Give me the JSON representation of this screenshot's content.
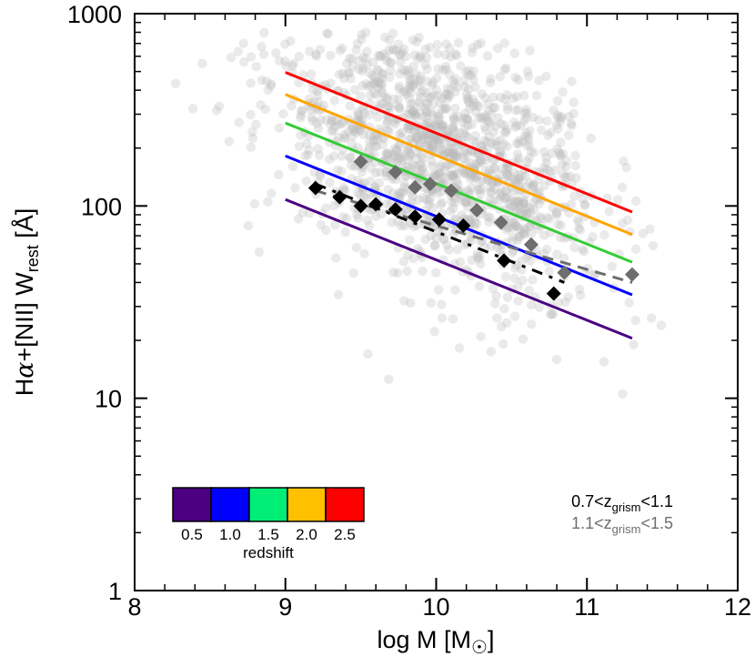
{
  "chart_data": {
    "type": "scatter",
    "title": "",
    "xlabel": "log M [M☉]",
    "xlabel_parts": {
      "pre": "log M [M",
      "sub": "☉",
      "post": "]"
    },
    "ylabel": "Hα+[NII]  W_rest [Å]",
    "ylabel_parts": {
      "pre": "H",
      "alpha": "α",
      "mid": "+[NII]  W",
      "sub": "rest",
      "post": " [Å]"
    },
    "xlim": [
      8,
      12
    ],
    "ylim": [
      1,
      1000
    ],
    "yscale": "log",
    "x_ticks": [
      8,
      9,
      10,
      11,
      12
    ],
    "x_tick_labels": [
      "8",
      "9",
      "10",
      "11",
      "12"
    ],
    "y_ticks": [
      1,
      10,
      100,
      1000
    ],
    "y_tick_labels": [
      "1",
      "10",
      "100",
      "1000"
    ],
    "model_lines": [
      {
        "redshift": 0.5,
        "color": "#4b0082",
        "x": [
          9.0,
          11.3
        ],
        "y": [
          108,
          20.5
        ]
      },
      {
        "redshift": 1.0,
        "color": "#0000ff",
        "x": [
          9.0,
          11.3
        ],
        "y": [
          182,
          34.5
        ]
      },
      {
        "redshift": 1.5,
        "color": "#33cc33",
        "x": [
          9.0,
          11.3
        ],
        "y": [
          270,
          51
        ]
      },
      {
        "redshift": 2.0,
        "color": "#ffa500",
        "x": [
          9.0,
          11.3
        ],
        "y": [
          380,
          71
        ]
      },
      {
        "redshift": 2.5,
        "color": "#ff0000",
        "x": [
          9.0,
          11.3
        ],
        "y": [
          495,
          93
        ]
      }
    ],
    "series": [
      {
        "name": "0.7<z_grism<1.1",
        "legend": {
          "pre": "0.7<z",
          "sub": "grism",
          "post": "<1.1"
        },
        "color": "#000000",
        "marker": "diamond",
        "x": [
          9.2,
          9.36,
          9.5,
          9.6,
          9.73,
          9.86,
          10.02,
          10.18,
          10.45,
          10.78
        ],
        "y": [
          124,
          111,
          100,
          102,
          96,
          88,
          85,
          79,
          52,
          35
        ],
        "fit": {
          "x": [
            9.2,
            10.85
          ],
          "y": [
            130,
            40
          ]
        }
      },
      {
        "name": "1.1<z_grism<1.5",
        "legend": {
          "pre": "1.1<z",
          "sub": "grism",
          "post": "<1.5"
        },
        "color": "#6e6e6e",
        "marker": "diamond",
        "x": [
          9.5,
          9.73,
          9.86,
          9.96,
          10.1,
          10.27,
          10.43,
          10.63,
          10.85,
          11.3
        ],
        "y": [
          170,
          150,
          125,
          130,
          120,
          95,
          82,
          63,
          45,
          44
        ],
        "fit": {
          "x": [
            9.2,
            11.3
          ],
          "y": [
            120,
            40
          ]
        }
      }
    ],
    "colorbar": {
      "title": "redshift",
      "colors": [
        "#4b0082",
        "#0000ff",
        "#00ee76",
        "#ffc000",
        "#ff0000"
      ],
      "tick_labels": [
        "0.5",
        "1.0",
        "1.5",
        "2.0",
        "2.5"
      ]
    },
    "background_cloud": {
      "color": "#b8b8b8",
      "x_range": [
        8.2,
        11.5
      ],
      "y_range": [
        1,
        750
      ],
      "description_count": 1500
    },
    "grid": false,
    "legend_position": "bottom-right"
  }
}
